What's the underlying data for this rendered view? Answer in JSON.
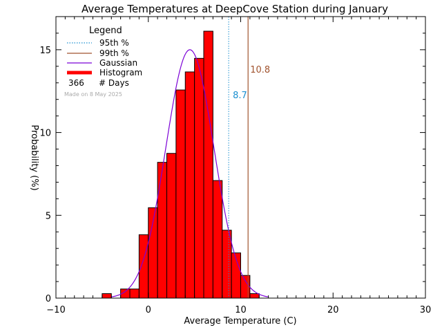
{
  "chart_data": {
    "type": "bar",
    "title": "Average Temperatures at DeepCove Station during January",
    "xlabel": "Average Temperature (C)",
    "ylabel": "Probability (%)",
    "xlim": [
      -10,
      30
    ],
    "ylim": [
      0,
      17
    ],
    "xticks": [
      "−10",
      "0",
      "10",
      "20",
      "30"
    ],
    "xtick_values": [
      -10,
      0,
      10,
      20,
      30
    ],
    "yticks": [
      "0",
      "5",
      "10",
      "15"
    ],
    "ytick_values": [
      0,
      5,
      10,
      15
    ],
    "bin_width": 1,
    "histogram": {
      "bin_starts": [
        -5,
        -4,
        -3,
        -2,
        -1,
        0,
        1,
        2,
        3,
        4,
        5,
        6,
        7,
        8,
        9,
        10,
        11
      ],
      "values": [
        0.27,
        0,
        0.55,
        0.55,
        3.83,
        5.46,
        8.2,
        8.74,
        12.57,
        13.66,
        14.48,
        16.12,
        7.1,
        4.1,
        2.73,
        1.37,
        0.27
      ]
    },
    "gaussian": {
      "mean": 4.5,
      "sigma": 2.6,
      "peak": 15.0,
      "x_range": [
        -4,
        13
      ]
    },
    "percentile_95": {
      "value": 8.7,
      "label": "8.7",
      "color": "#1a8fd0"
    },
    "percentile_99": {
      "value": 10.8,
      "label": "10.8",
      "color": "#a0522d"
    },
    "colors": {
      "histogram_fill": "#ff0000",
      "histogram_edge": "#000000",
      "gaussian": "#7b00d6",
      "p95": "#1a8fd0",
      "p99": "#a0522d",
      "watermark": "#aaaaaa"
    },
    "legend": {
      "title": "Legend",
      "placement": "top-left",
      "entries": {
        "p95": "95th %",
        "p99": "99th %",
        "gaussian": "Gaussian",
        "histogram": "Histogram"
      },
      "days_count": "366",
      "days_label": "# Days"
    },
    "watermark": "Made on 8 May 2025"
  }
}
